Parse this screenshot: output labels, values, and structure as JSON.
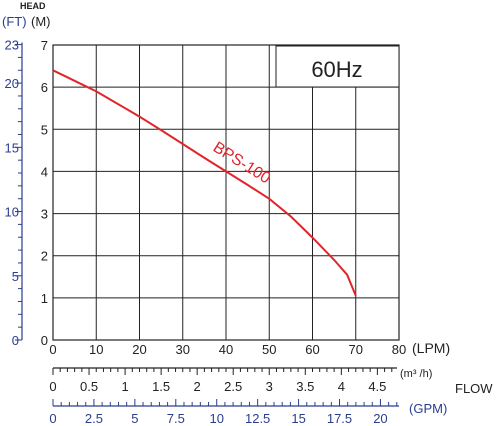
{
  "chart_data": {
    "type": "line",
    "frequency_label": "60Hz",
    "head_label": "HEAD",
    "ft_unit": "(FT)",
    "m_unit": "(M)",
    "flow_label": "FLOW",
    "lpm_unit": "(LPM)",
    "m3h_unit": "(m³ /h)",
    "gpm_unit": "(GPM)",
    "y_ticks_m": [
      "0",
      "1",
      "2",
      "3",
      "4",
      "5",
      "6",
      "7"
    ],
    "ft_ticks": [
      {
        "label": "0",
        "v": 0
      },
      {
        "label": "5",
        "v": 5
      },
      {
        "label": "10",
        "v": 10
      },
      {
        "label": "15",
        "v": 15
      },
      {
        "label": "20",
        "v": 20
      },
      {
        "label": "23",
        "v": 23
      }
    ],
    "x_ticks_lpm": [
      "0",
      "10",
      "20",
      "30",
      "40",
      "50",
      "60",
      "70",
      "80"
    ],
    "m3h_ticks": [
      "0",
      "0.5",
      "1",
      "1.5",
      "2",
      "2.5",
      "3",
      "3.5",
      "4",
      "4.5"
    ],
    "gpm_ticks": [
      "0",
      "2.5",
      "5",
      "7.5",
      "10",
      "12.5",
      "15",
      "17.5",
      "20"
    ],
    "xlim_lpm": [
      0,
      80
    ],
    "ylim_m": [
      0,
      7
    ],
    "grid": true,
    "colors": {
      "curve": "#e0262b",
      "ft_axis": "#2a3d8f",
      "grid": "#222222"
    },
    "series": [
      {
        "name": "BPS-100",
        "x": [
          0,
          5,
          10,
          15,
          20,
          25,
          30,
          35,
          40,
          45,
          50,
          55,
          60,
          65,
          68,
          70
        ],
        "y": [
          6.4,
          6.15,
          5.9,
          5.6,
          5.3,
          4.98,
          4.65,
          4.32,
          4.0,
          3.68,
          3.35,
          2.93,
          2.43,
          1.9,
          1.55,
          1.05
        ]
      }
    ]
  }
}
